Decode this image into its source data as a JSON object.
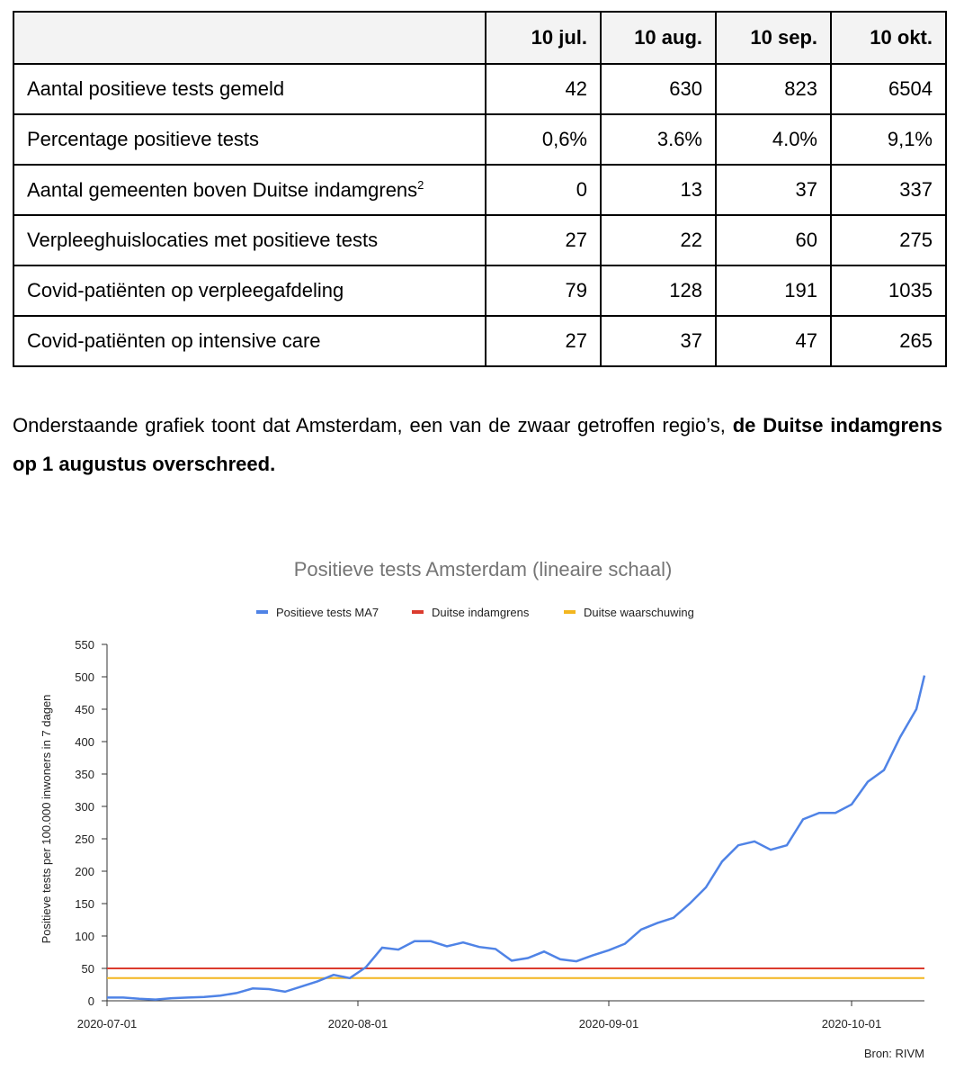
{
  "table": {
    "columns": [
      "10 jul.",
      "10 aug.",
      "10 sep.",
      "10 okt."
    ],
    "rows": [
      {
        "label": "Aantal positieve tests gemeld",
        "cells": [
          "42",
          "630",
          "823",
          "6504"
        ]
      },
      {
        "label": "Percentage positieve tests",
        "cells": [
          "0,6%",
          "3.6%",
          "4.0%",
          "9,1%"
        ]
      },
      {
        "label": "Aantal gemeenten boven Duitse indamgrens",
        "footnote": "2",
        "cells": [
          "0",
          "13",
          "37",
          "337"
        ]
      },
      {
        "label": "Verpleeghuislocaties met positieve tests",
        "cells": [
          "27",
          "22",
          "60",
          "275"
        ]
      },
      {
        "label": "Covid-patiënten op verpleegafdeling",
        "cells": [
          "79",
          "128",
          "191",
          "1035"
        ]
      },
      {
        "label": "Covid-patiënten op intensive care",
        "cells": [
          "27",
          "37",
          "47",
          "265"
        ]
      }
    ]
  },
  "paragraph": {
    "text": "Onderstaande grafiek toont dat Amsterdam, een van de zwaar getroffen regio’s,",
    "bold": "de Duitse indamgrens op 1 augustus overschreed."
  },
  "chart_data": {
    "type": "line",
    "title": "Positieve tests Amsterdam (lineaire schaal)",
    "y_label": "Positieve tests per 100.000 inwoners in 7 dagen",
    "source": "Bron: RIVM",
    "xlim": [
      "2020-07-01",
      "2020-10-10"
    ],
    "xticks": [
      "2020-07-01",
      "2020-08-01",
      "2020-09-01",
      "2020-10-01"
    ],
    "ylim": [
      0,
      550
    ],
    "yticks": [
      0,
      50,
      100,
      150,
      200,
      250,
      300,
      350,
      400,
      450,
      500,
      550
    ],
    "series": [
      {
        "name": "Positieve tests MA7",
        "color": "#4f83e6",
        "x": [
          "2020-07-01",
          "2020-07-03",
          "2020-07-05",
          "2020-07-07",
          "2020-07-09",
          "2020-07-11",
          "2020-07-13",
          "2020-07-15",
          "2020-07-17",
          "2020-07-19",
          "2020-07-21",
          "2020-07-23",
          "2020-07-25",
          "2020-07-27",
          "2020-07-29",
          "2020-07-31",
          "2020-08-02",
          "2020-08-04",
          "2020-08-06",
          "2020-08-08",
          "2020-08-10",
          "2020-08-12",
          "2020-08-14",
          "2020-08-16",
          "2020-08-18",
          "2020-08-20",
          "2020-08-22",
          "2020-08-24",
          "2020-08-26",
          "2020-08-28",
          "2020-08-30",
          "2020-09-01",
          "2020-09-03",
          "2020-09-05",
          "2020-09-07",
          "2020-09-09",
          "2020-09-11",
          "2020-09-13",
          "2020-09-15",
          "2020-09-17",
          "2020-09-19",
          "2020-09-21",
          "2020-09-23",
          "2020-09-25",
          "2020-09-27",
          "2020-09-29",
          "2020-10-01",
          "2020-10-03",
          "2020-10-05",
          "2020-10-07",
          "2020-10-09",
          "2020-10-10"
        ],
        "values": [
          5,
          5,
          3,
          2,
          4,
          5,
          6,
          8,
          12,
          19,
          18,
          14,
          22,
          30,
          40,
          35,
          52,
          82,
          79,
          92,
          92,
          84,
          90,
          83,
          80,
          62,
          66,
          76,
          64,
          61,
          70,
          78,
          88,
          110,
          120,
          128,
          150,
          175,
          215,
          240,
          246,
          233,
          240,
          280,
          290,
          290,
          303,
          338,
          356,
          407,
          450,
          502
        ]
      },
      {
        "name": "Duitse indamgrens",
        "color": "#db3b2e",
        "x": [
          "2020-07-01",
          "2020-10-10"
        ],
        "values": [
          50,
          50
        ]
      },
      {
        "name": "Duitse waarschuwing",
        "color": "#f3b61f",
        "x": [
          "2020-07-01",
          "2020-10-10"
        ],
        "values": [
          35,
          35
        ]
      }
    ]
  }
}
